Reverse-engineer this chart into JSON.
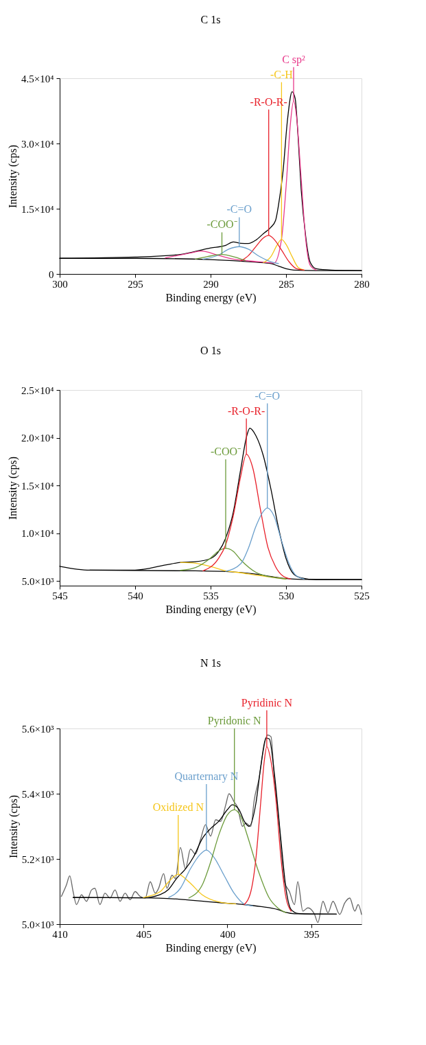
{
  "chart_data": [
    {
      "type": "line",
      "title": "C 1s",
      "xlabel": "Binding energy (eV)",
      "ylabel": "Intensity (cps)",
      "xlim": [
        300,
        280
      ],
      "xticks": [
        300,
        295,
        290,
        285,
        280
      ],
      "ylim": [
        0,
        45000
      ],
      "yticks": [
        0,
        {
          "value": 15000,
          "label": "1.5×10⁴"
        },
        {
          "value": 30000,
          "label": "3.0×10⁴"
        },
        {
          "value": 45000,
          "label": "4.5×10⁴"
        }
      ],
      "series": [
        {
          "color": "#000000",
          "x": [
            300,
            295,
            292,
            290,
            289,
            288.5,
            288,
            287.5,
            287,
            286.5,
            286,
            285.7,
            285.5,
            285.2,
            284.9,
            284.6,
            284.4,
            284.2,
            284,
            283.7,
            283.4,
            283,
            282,
            280
          ],
          "values": [
            3590,
            3890,
            4490,
            5980,
            6580,
            7360,
            7060,
            7000,
            7780,
            9280,
            10770,
            12270,
            15860,
            23640,
            35600,
            41890,
            40390,
            31420,
            19450,
            8680,
            2690,
            1200,
            900,
            780
          ]
        },
        {
          "color": "#000000",
          "x": [
            300,
            295,
            290,
            287,
            286,
            285.5,
            285,
            284.5,
            283,
            280
          ],
          "values": [
            3590,
            3590,
            3290,
            2690,
            2390,
            1800,
            1200,
            900,
            780,
            780
          ]
        },
        {
          "name": "C sp²",
          "color": "#e8388a",
          "x": [
            293,
            291.5,
            290.6,
            289.5,
            288.5,
            287.5,
            286.5,
            285.8,
            285.3,
            285,
            284.7,
            284.5,
            284.3,
            284,
            283.7,
            283.4,
            283
          ],
          "values": [
            3700,
            4700,
            5260,
            4300,
            3400,
            3000,
            2700,
            2500,
            8000,
            20000,
            35000,
            39800,
            36000,
            22000,
            8000,
            2000,
            900
          ]
        },
        {
          "name": "-C-H",
          "color": "#f5c518",
          "x": [
            286.5,
            286,
            285.6,
            285.3,
            285,
            284.6,
            284.2,
            283.8
          ],
          "values": [
            2600,
            4000,
            6600,
            7960,
            6800,
            4000,
            1500,
            900
          ]
        },
        {
          "name": "-R-O-R-",
          "color": "#e8202a",
          "x": [
            288,
            287.5,
            287,
            286.5,
            286.15,
            285.8,
            285.3,
            284.8,
            284.3,
            283.8
          ],
          "values": [
            3000,
            4200,
            6300,
            8300,
            8860,
            8000,
            5500,
            2800,
            1200,
            900
          ]
        },
        {
          "name": "-C=O",
          "color": "#6a9fcc",
          "x": [
            290.5,
            289.5,
            288.8,
            288.1,
            287.5,
            286.8,
            286,
            285.5
          ],
          "values": [
            3400,
            4300,
            5700,
            6280,
            5700,
            4100,
            2800,
            2400
          ]
        },
        {
          "name": "-COO⁻",
          "color": "#6b9a3a",
          "x": [
            291,
            290.2,
            289.25,
            288.4,
            287.7
          ],
          "values": [
            3400,
            4000,
            4490,
            3900,
            3100
          ]
        }
      ]
    },
    {
      "type": "line",
      "title": "O 1s",
      "xlabel": "Binding energy (eV)",
      "ylabel": "Intensity (cps)",
      "xlim": [
        545,
        525
      ],
      "xticks": [
        545,
        540,
        535,
        530,
        525
      ],
      "ylim": [
        4500,
        25000
      ],
      "yticks": [
        {
          "value": 5000,
          "label": "5.0×10³"
        },
        {
          "value": 10000,
          "label": "1.0×10⁴"
        },
        {
          "value": 15000,
          "label": "1.5×10⁴"
        },
        {
          "value": 20000,
          "label": "2.0×10⁴"
        },
        {
          "value": 25000,
          "label": "2.5×10⁴"
        }
      ],
      "series": [
        {
          "color": "#000000",
          "x": [
            545,
            543,
            540,
            538,
            537,
            536,
            535,
            534.5,
            534,
            533.5,
            533,
            532.6,
            532.4,
            532,
            531.5,
            531,
            530.5,
            530,
            529.5,
            529,
            528,
            525
          ],
          "values": [
            6530,
            6130,
            6130,
            6660,
            6930,
            7010,
            7340,
            8010,
            9480,
            12170,
            16730,
            20220,
            21000,
            20220,
            18080,
            14590,
            10560,
            7340,
            5720,
            5320,
            5130,
            5130
          ]
        },
        {
          "color": "#000000",
          "x": [
            543,
            536,
            534,
            532,
            531,
            530,
            529,
            525
          ],
          "values": [
            6130,
            6050,
            5990,
            5720,
            5460,
            5240,
            5160,
            5130
          ]
        },
        {
          "color": "#f5c518",
          "x": [
            537,
            536,
            535,
            534,
            533,
            532,
            531,
            530
          ],
          "values": [
            6930,
            6850,
            6500,
            6050,
            5850,
            5600,
            5400,
            5200
          ]
        },
        {
          "name": "-COO⁻",
          "color": "#6b9a3a",
          "x": [
            537,
            536,
            535,
            534.5,
            534,
            533.5,
            533,
            532,
            531,
            530
          ],
          "values": [
            6100,
            6400,
            7400,
            8100,
            8410,
            8100,
            7200,
            5900,
            5400,
            5200
          ]
        },
        {
          "name": "-R-O-R-",
          "color": "#e8202a",
          "x": [
            535.5,
            534.5,
            534,
            533.5,
            533,
            532.63,
            532.2,
            531.7,
            531.2,
            530.7,
            530.2,
            529.7
          ],
          "values": [
            6050,
            7300,
            8800,
            11800,
            16000,
            18260,
            16800,
            12500,
            8500,
            6500,
            5500,
            5200
          ]
        },
        {
          "name": "-C=O",
          "color": "#6a9fcc",
          "x": [
            534,
            533,
            532.5,
            532,
            531.5,
            531.24,
            530.8,
            530.3,
            529.8,
            529.3,
            528.8
          ],
          "values": [
            6000,
            6800,
            8400,
            10700,
            12300,
            12630,
            11800,
            9200,
            6800,
            5500,
            5200
          ]
        }
      ]
    },
    {
      "type": "line",
      "title": "N 1s",
      "xlabel": "Binding energy (eV)",
      "ylabel": "Intensity (cps)",
      "xlim": [
        410,
        392
      ],
      "xticks": [
        410,
        405,
        400,
        395
      ],
      "ylim": [
        5000,
        5600
      ],
      "yticks": [
        {
          "value": 5000,
          "label": "5.0×10³"
        },
        {
          "value": 5200,
          "label": "5.2×10³"
        },
        {
          "value": 5400,
          "label": "5.4×10³"
        },
        {
          "value": 5600,
          "label": "5.6×10³"
        }
      ],
      "series": [
        {
          "color": "#666666",
          "x": [
            409.9,
            409.6,
            409.4,
            409.2,
            409.0,
            408.7,
            408.4,
            408.1,
            407.9,
            407.6,
            407.3,
            407.0,
            406.7,
            406.4,
            406.1,
            405.8,
            405.5,
            405.2,
            404.9,
            404.6,
            404.3,
            404.1,
            403.8,
            403.6,
            403.3,
            403.1,
            402.8,
            402.5,
            402.2,
            401.9,
            401.6,
            401.3,
            401.0,
            400.7,
            400.4,
            400.1,
            399.9,
            399.6,
            399.4,
            399.1,
            398.9,
            398.6,
            398.4,
            398.1,
            397.9,
            397.6,
            397.4,
            397.2,
            396.9,
            396.6,
            396.3,
            396.0,
            395.8,
            395.5,
            395.2,
            394.8,
            394.6,
            394.3,
            394.0,
            393.7,
            393.3,
            393.0,
            392.7,
            392.4,
            392.2,
            392.0
          ],
          "values": [
            5085,
            5120,
            5148,
            5100,
            5060,
            5090,
            5070,
            5105,
            5110,
            5060,
            5095,
            5080,
            5105,
            5070,
            5095,
            5075,
            5100,
            5085,
            5080,
            5130,
            5095,
            5110,
            5155,
            5110,
            5150,
            5140,
            5235,
            5170,
            5230,
            5215,
            5260,
            5305,
            5270,
            5320,
            5315,
            5365,
            5400,
            5375,
            5360,
            5300,
            5310,
            5300,
            5380,
            5450,
            5520,
            5580,
            5575,
            5450,
            5300,
            5130,
            5100,
            5060,
            5130,
            5040,
            5050,
            5030,
            5005,
            5070,
            5035,
            5070,
            5030,
            5065,
            5080,
            5040,
            5060,
            5030
          ]
        },
        {
          "color": "#000000",
          "x": [
            409.2,
            405,
            404,
            403.5,
            403,
            402.5,
            402,
            401.5,
            401,
            400.5,
            400,
            399.7,
            399.3,
            399,
            398.7,
            398.3,
            398,
            397.7,
            397.5,
            397.2,
            396.8,
            396.5,
            396.2,
            395.8,
            395,
            393.5
          ],
          "values": [
            5082,
            5081,
            5091,
            5107,
            5142,
            5169,
            5208,
            5262,
            5293,
            5316,
            5351,
            5366,
            5351,
            5316,
            5300,
            5370,
            5486,
            5571,
            5568,
            5463,
            5254,
            5107,
            5045,
            5033,
            5031,
            5031
          ]
        },
        {
          "color": "#000000",
          "x": [
            409.2,
            405,
            403,
            401,
            400,
            399,
            398,
            397,
            396.5,
            396,
            393.5
          ],
          "values": [
            5082,
            5081,
            5077,
            5068,
            5064,
            5060,
            5054,
            5045,
            5036,
            5032,
            5031
          ]
        },
        {
          "name": "Oxidized N",
          "color": "#f5c518",
          "x": [
            405,
            404,
            403.5,
            402.93,
            402.3,
            401.5,
            400.5,
            399.5
          ],
          "values": [
            5082,
            5100,
            5130,
            5153,
            5130,
            5090,
            5068,
            5062
          ]
        },
        {
          "name": "Quarternary N",
          "color": "#6a9fcc",
          "x": [
            403.5,
            402.8,
            402.2,
            401.6,
            401.25,
            400.8,
            400.2,
            399.6,
            399,
            398.5
          ],
          "values": [
            5082,
            5110,
            5170,
            5215,
            5227,
            5205,
            5150,
            5095,
            5062,
            5056
          ]
        },
        {
          "name": "Pyridonic N",
          "color": "#6b9a3a",
          "x": [
            402.3,
            401.5,
            401,
            400.5,
            400,
            399.58,
            399.2,
            398.8,
            398.2,
            397.5,
            397,
            396.5
          ],
          "values": [
            5080,
            5120,
            5190,
            5275,
            5335,
            5351,
            5330,
            5270,
            5170,
            5080,
            5050,
            5035
          ]
        },
        {
          "name": "Pyridinic N",
          "color": "#e8202a",
          "x": [
            399,
            398.6,
            398.3,
            398,
            397.8,
            397.65,
            397.4,
            397.1,
            396.8,
            396.5,
            396.2
          ],
          "values": [
            5060,
            5100,
            5200,
            5380,
            5500,
            5544,
            5500,
            5380,
            5200,
            5080,
            5040
          ]
        }
      ]
    }
  ]
}
